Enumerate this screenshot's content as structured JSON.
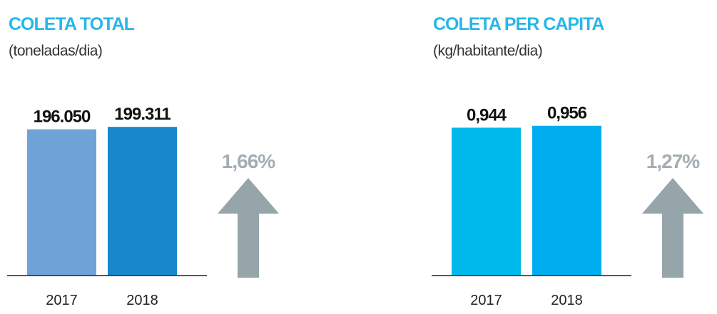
{
  "chart_data": [
    {
      "type": "bar",
      "title": "COLETA TOTAL",
      "subtitle": "(toneladas/dia)",
      "categories": [
        "2017",
        "2018"
      ],
      "values": [
        196050,
        199311
      ],
      "value_labels": [
        "196.050",
        "199.311"
      ],
      "colors": [
        "#6fa3d6",
        "#1788cc"
      ],
      "ylim": [
        0,
        210000
      ],
      "annotation": "1,66%"
    },
    {
      "type": "bar",
      "title": "COLETA PER CAPITA",
      "subtitle": "(kg/habitante/dia)",
      "categories": [
        "2017",
        "2018"
      ],
      "values": [
        0.944,
        0.956
      ],
      "value_labels": [
        "0,944",
        "0,956"
      ],
      "colors": [
        "#00b9ec",
        "#00aeef"
      ],
      "ylim": [
        0,
        1.0
      ],
      "annotation": "1,27%"
    }
  ]
}
